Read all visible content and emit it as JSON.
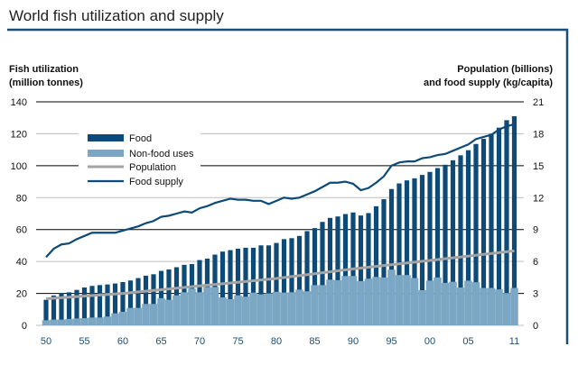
{
  "chart_data": {
    "type": "bar",
    "title": "World fish utilization and supply",
    "ylabel_left": [
      "Fish utilization",
      "(million tonnes)"
    ],
    "ylabel_right": [
      "Population (billions)",
      "and food supply (kg/capita)"
    ],
    "ylim_left": [
      0,
      140
    ],
    "ylim_right": [
      0,
      21
    ],
    "yticks_left": [
      "0",
      "20",
      "40",
      "60",
      "80",
      "100",
      "120",
      "140"
    ],
    "yticks_right": [
      "0",
      "3",
      "6",
      "9",
      "12",
      "15",
      "18",
      "21"
    ],
    "xticks": [
      {
        "year": 1950,
        "label": "50"
      },
      {
        "year": 1955,
        "label": "55"
      },
      {
        "year": 1960,
        "label": "60"
      },
      {
        "year": 1965,
        "label": "65"
      },
      {
        "year": 1970,
        "label": "70"
      },
      {
        "year": 1975,
        "label": "75"
      },
      {
        "year": 1980,
        "label": "80"
      },
      {
        "year": 1985,
        "label": "85"
      },
      {
        "year": 1990,
        "label": "90"
      },
      {
        "year": 1995,
        "label": "95"
      },
      {
        "year": 2000,
        "label": "00"
      },
      {
        "year": 2005,
        "label": "05"
      },
      {
        "year": 2011,
        "label": "11"
      }
    ],
    "grid": true,
    "legend_placement": "top-left",
    "x_start": 1950,
    "series": [
      {
        "name": "Food",
        "type": "bar",
        "axis": "left",
        "color": "#0d4a78",
        "values": [
          16,
          18.7,
          20.3,
          20.7,
          22.2,
          23.7,
          24.7,
          25.2,
          25.6,
          26.2,
          27.1,
          28.1,
          29.6,
          31.1,
          32,
          34.1,
          35,
          36.4,
          37.9,
          38.4,
          40.9,
          41.8,
          44.3,
          46.2,
          47.1,
          48,
          48.6,
          48.6,
          50.1,
          50.1,
          51.6,
          54,
          54.6,
          56,
          59,
          60.9,
          64.8,
          67.3,
          68.2,
          69.7,
          70.7,
          68.8,
          70.3,
          74.6,
          79,
          85.4,
          88.9,
          90.8,
          92.1,
          94.2,
          96.1,
          98.5,
          100.6,
          103.4,
          106.5,
          109.7,
          113.6,
          116.8,
          120,
          123.8,
          128.5,
          131
        ]
      },
      {
        "name": "Non-food uses",
        "type": "bar",
        "axis": "left",
        "color": "#7ba7c4",
        "values": [
          3.2,
          3.6,
          3.6,
          4,
          4.3,
          4.5,
          4.9,
          4.9,
          5.5,
          7.5,
          8.5,
          10.9,
          10.9,
          13.4,
          13.4,
          17,
          16,
          18.8,
          20.7,
          23,
          20.7,
          24,
          24,
          17.5,
          16.4,
          18.8,
          17.9,
          20.5,
          19.4,
          20,
          21,
          20.5,
          20.7,
          22.4,
          21.3,
          25.2,
          25.2,
          28.6,
          28.3,
          30.9,
          30.9,
          27.7,
          29.2,
          30.3,
          30,
          34.9,
          31.5,
          31.5,
          29.6,
          22,
          28,
          30,
          26.6,
          27.3,
          23.7,
          28,
          27,
          23.4,
          23.4,
          22.5,
          20.2,
          23.4
        ]
      },
      {
        "name": "Population",
        "type": "line",
        "axis": "right",
        "color": "#a3a3a3",
        "points": [
          [
            1950,
            2.5
          ],
          [
            1960,
            3.0
          ],
          [
            1970,
            3.7
          ],
          [
            1980,
            4.4
          ],
          [
            1990,
            5.3
          ],
          [
            2000,
            6.1
          ],
          [
            2011,
            7.0
          ]
        ]
      },
      {
        "name": "Food supply",
        "type": "line",
        "axis": "right",
        "color": "#0d4a78",
        "values": [
          6.4,
          7.2,
          7.6,
          7.7,
          8.1,
          8.4,
          8.7,
          8.7,
          8.7,
          8.7,
          8.9,
          9.1,
          9.3,
          9.6,
          9.8,
          10.2,
          10.3,
          10.5,
          10.7,
          10.6,
          11.0,
          11.2,
          11.5,
          11.7,
          11.9,
          11.8,
          11.8,
          11.7,
          11.7,
          11.4,
          11.7,
          12.0,
          11.9,
          12.0,
          12.3,
          12.6,
          13.0,
          13.4,
          13.4,
          13.5,
          13.3,
          12.7,
          12.9,
          13.4,
          14.0,
          15.0,
          15.3,
          15.4,
          15.4,
          15.7,
          15.8,
          16.0,
          16.1,
          16.4,
          16.7,
          17.0,
          17.5,
          17.7,
          17.9,
          18.4,
          18.7,
          18.9
        ]
      }
    ]
  }
}
